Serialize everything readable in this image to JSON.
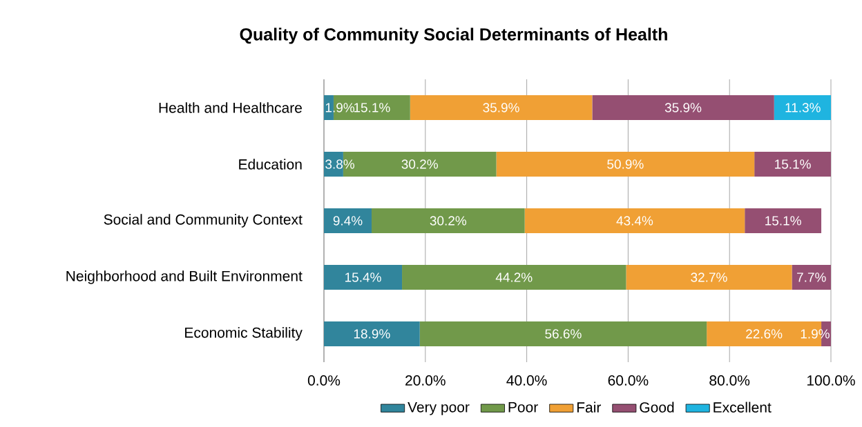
{
  "chart_data": {
    "type": "bar",
    "orientation": "horizontal",
    "stacked": true,
    "title": "Quality of Community Social Determinants of Health",
    "categories": [
      "Health and Healthcare",
      "Education",
      "Social and Community Context",
      "Neighborhood and Built Environment",
      "Economic Stability"
    ],
    "series": [
      {
        "name": "Very poor",
        "color": "#31859c",
        "values": [
          1.9,
          3.8,
          9.4,
          15.4,
          18.9
        ],
        "value_labels": [
          "1.9%",
          "3.8%",
          "9.4%",
          "15.4%",
          "18.9%"
        ]
      },
      {
        "name": "Poor",
        "color": "#71994a",
        "values": [
          15.1,
          30.2,
          30.2,
          44.2,
          56.6
        ],
        "value_labels": [
          "15.1%",
          "30.2%",
          "30.2%",
          "44.2%",
          "56.6%"
        ]
      },
      {
        "name": "Fair",
        "color": "#f0a035",
        "values": [
          35.9,
          50.9,
          43.4,
          32.7,
          22.6
        ],
        "value_labels": [
          "35.9%",
          "50.9%",
          "43.4%",
          "32.7%",
          "22.6%"
        ]
      },
      {
        "name": "Good",
        "color": "#954f72",
        "values": [
          35.9,
          15.1,
          15.1,
          7.7,
          1.9
        ],
        "value_labels": [
          "35.9%",
          "15.1%",
          "15.1%",
          "7.7%",
          "1.9%"
        ]
      },
      {
        "name": "Excellent",
        "color": "#1fb4e0",
        "values": [
          11.3,
          null,
          null,
          null,
          null
        ],
        "value_labels": [
          "11.3%",
          null,
          null,
          null,
          null
        ]
      }
    ],
    "xlim": [
      0,
      100
    ],
    "xticks": [
      {
        "value": 0,
        "label": "0.0%"
      },
      {
        "value": 20,
        "label": "20.0%"
      },
      {
        "value": 40,
        "label": "40.0%"
      },
      {
        "value": 60,
        "label": "60.0%"
      },
      {
        "value": 80,
        "label": "80.0%"
      },
      {
        "value": 100,
        "label": "100.0%"
      }
    ],
    "grid": "x",
    "legend": "bottom"
  }
}
